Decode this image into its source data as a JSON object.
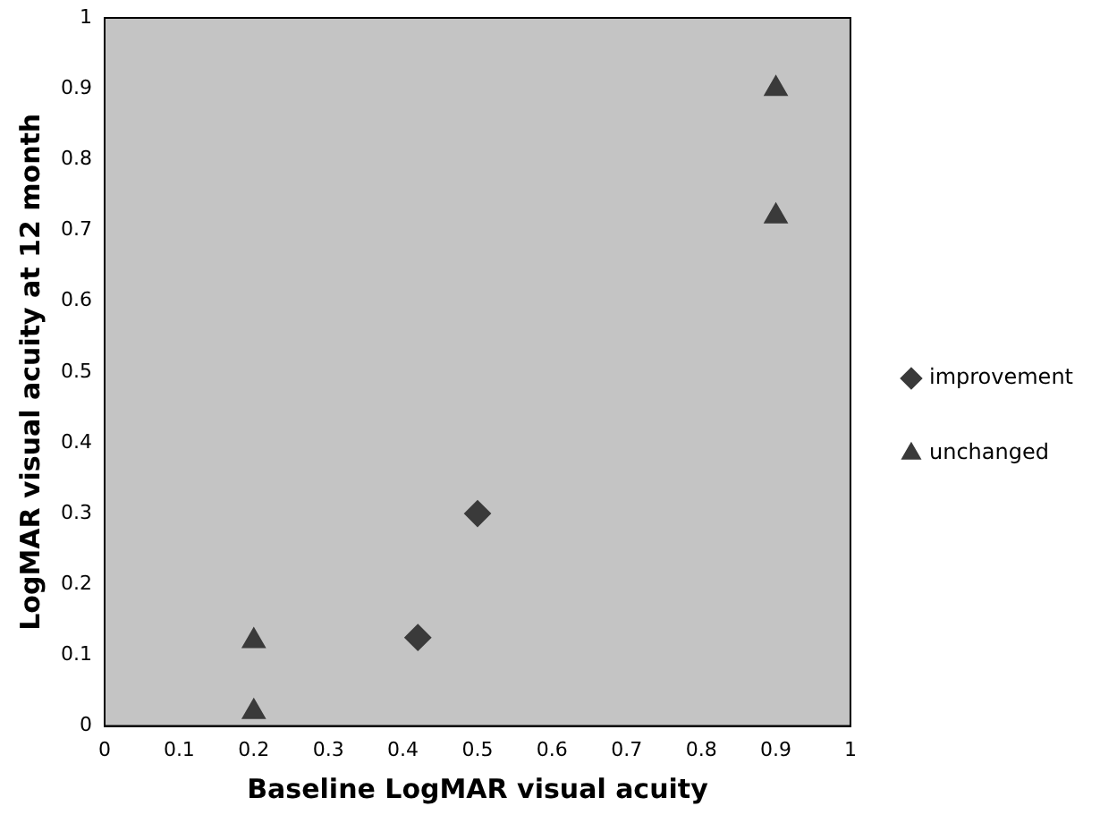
{
  "chart_data": {
    "type": "scatter",
    "xlabel": "Baseline LogMAR visual acuity",
    "ylabel": "LogMAR visual acuity at 12 month",
    "xlim": [
      0,
      1
    ],
    "xticks": [
      0,
      0.1,
      0.2,
      0.3,
      0.4,
      0.5,
      0.6,
      0.7,
      0.8,
      0.9,
      1
    ],
    "ylim": [
      0,
      1
    ],
    "yticks": [
      0,
      0.1,
      0.2,
      0.3,
      0.4,
      0.5,
      0.6,
      0.7,
      0.8,
      0.9,
      1
    ],
    "grid": false,
    "legend": "right",
    "series": [
      {
        "name": "improvement",
        "color": "#3a3a3a",
        "marker": "diamond",
        "x": [
          0.42,
          0.5
        ],
        "values": [
          0.125,
          0.3
        ]
      },
      {
        "name": "unchanged",
        "color": "#3a3a3a",
        "marker": "triangle",
        "x": [
          0.2,
          0.2,
          0.9,
          0.9
        ],
        "values": [
          0.12,
          0.02,
          0.9,
          0.72
        ]
      }
    ]
  }
}
